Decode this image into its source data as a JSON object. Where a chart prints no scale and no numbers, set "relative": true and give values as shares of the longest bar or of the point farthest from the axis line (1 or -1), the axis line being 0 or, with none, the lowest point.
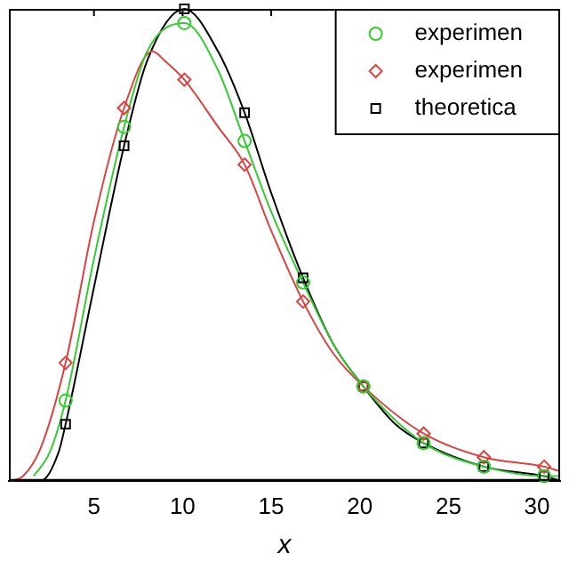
{
  "chart_data": {
    "type": "line",
    "xlabel": "x",
    "relative": true,
    "xlim": [
      0.2,
      31.3
    ],
    "xticks": [
      5,
      10,
      15,
      20,
      25,
      30
    ],
    "legend": "top right",
    "grid": false,
    "series": [
      {
        "type": "line",
        "color": "#33cc33",
        "marker": "none",
        "x": [
          1.6,
          2.5,
          3.4,
          5,
          6.7,
          8,
          10.1,
          12,
          13.5,
          15,
          16.8,
          18.5,
          20.2,
          23.6,
          27,
          30.4,
          31.3
        ],
        "values": [
          0.01,
          0.06,
          0.17,
          0.47,
          0.75,
          0.91,
          0.97,
          0.87,
          0.72,
          0.57,
          0.42,
          0.29,
          0.2,
          0.08,
          0.03,
          0.01,
          0.01
        ]
      },
      {
        "type": "line",
        "color": "#e04040",
        "marker": "none",
        "x": [
          0.3,
          1,
          2,
          3.4,
          5,
          6.7,
          8.3,
          9,
          10.1,
          12,
          13.5,
          15,
          16.8,
          18.5,
          20.2,
          23.6,
          27,
          30.4,
          31.3
        ],
        "values": [
          0,
          0.01,
          0.07,
          0.25,
          0.55,
          0.79,
          0.91,
          0.89,
          0.85,
          0.75,
          0.67,
          0.53,
          0.38,
          0.27,
          0.2,
          0.1,
          0.05,
          0.03,
          0.02
        ]
      },
      {
        "type": "line",
        "color": "#000000",
        "marker": "none",
        "x": [
          1,
          2,
          3,
          3.4,
          5,
          6.7,
          8,
          10.1,
          12,
          13.5,
          15,
          16.8,
          18.5,
          20.2,
          22,
          23.6,
          27,
          30.4,
          31.3
        ],
        "values": [
          0,
          0,
          0.06,
          0.12,
          0.41,
          0.71,
          0.89,
          1,
          0.91,
          0.78,
          0.61,
          0.43,
          0.29,
          0.2,
          0.12,
          0.08,
          0.03,
          0.01,
          0
        ]
      },
      {
        "type": "scatter",
        "name": "experimen",
        "color": "#33cc33",
        "marker": "circle",
        "x": [
          3.4,
          6.7,
          10.1,
          13.5,
          16.8,
          20.2,
          23.6,
          27,
          30.4
        ],
        "values": [
          0.17,
          0.75,
          0.97,
          0.72,
          0.42,
          0.2,
          0.08,
          0.03,
          0.01
        ]
      },
      {
        "type": "scatter",
        "name": "experimen",
        "color": "#e04040",
        "marker": "diamond",
        "x": [
          3.4,
          6.7,
          10.1,
          13.5,
          16.8,
          20.2,
          23.6,
          27,
          30.4
        ],
        "values": [
          0.25,
          0.79,
          0.85,
          0.67,
          0.38,
          0.2,
          0.1,
          0.05,
          0.03
        ]
      },
      {
        "type": "scatter",
        "name": "theoretica",
        "color": "#000000",
        "marker": "square",
        "x": [
          3.4,
          6.7,
          10.1,
          13.5,
          16.8,
          20.2,
          23.6,
          27,
          30.4
        ],
        "values": [
          0.12,
          0.71,
          1,
          0.78,
          0.43,
          0.2,
          0.08,
          0.03,
          0.01
        ]
      }
    ]
  }
}
